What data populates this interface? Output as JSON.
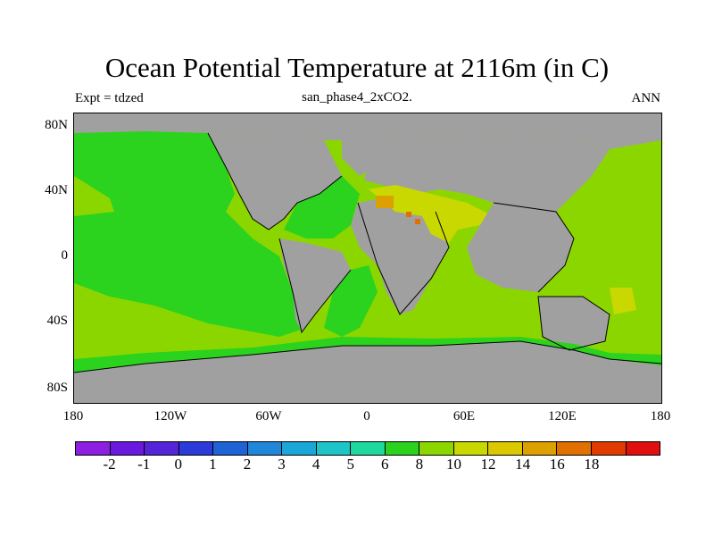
{
  "title": "Ocean Potential Temperature at 2116m (in C)",
  "subtitle": "san_phase4_2xCO2.",
  "left_label": "Expt = tdzed",
  "right_label": "ANN",
  "y_ticks": [
    "80N",
    "40N",
    "0",
    "40S",
    "80S"
  ],
  "x_ticks": [
    "180",
    "120W",
    "60W",
    "0",
    "60E",
    "120E",
    "180"
  ],
  "colorbar": {
    "colors": [
      "#8c1fe0",
      "#6a19df",
      "#5424d8",
      "#2b3ad9",
      "#1f63d6",
      "#1f86d9",
      "#1aa6d6",
      "#1ec5c8",
      "#1ed8a0",
      "#2bd21e",
      "#8cd600",
      "#c8d800",
      "#dcc800",
      "#dca000",
      "#e07000",
      "#e03c00",
      "#e01010"
    ],
    "labels": [
      "-2",
      "-1",
      "0",
      "1",
      "2",
      "3",
      "4",
      "5",
      "6",
      "8",
      "10",
      "12",
      "14",
      "16",
      "18"
    ]
  },
  "legend_colors": {
    "land": "#a0a0a0",
    "deep_cool": "#2bd21e",
    "mid": "#8cd600",
    "warm": "#c8d800",
    "hot": "#dca000",
    "hotter": "#e07000"
  }
}
